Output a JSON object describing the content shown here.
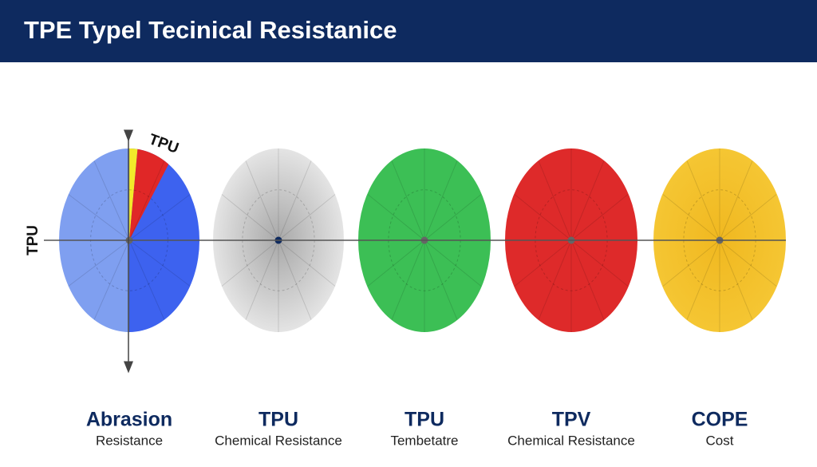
{
  "header": {
    "title": "TPE Typel Tecinical Resistanice"
  },
  "axis_labels": {
    "left": "TPU",
    "top": "TPU"
  },
  "items": [
    {
      "title": "Abrasion",
      "subtitle": "Resistance"
    },
    {
      "title": "TPU",
      "subtitle": "Chemical Resistance"
    },
    {
      "title": "TPU",
      "subtitle": "Tembetatre"
    },
    {
      "title": "TPV",
      "subtitle": "Chemical Resistance"
    },
    {
      "title": "COPE",
      "subtitle": "Cost"
    }
  ]
}
